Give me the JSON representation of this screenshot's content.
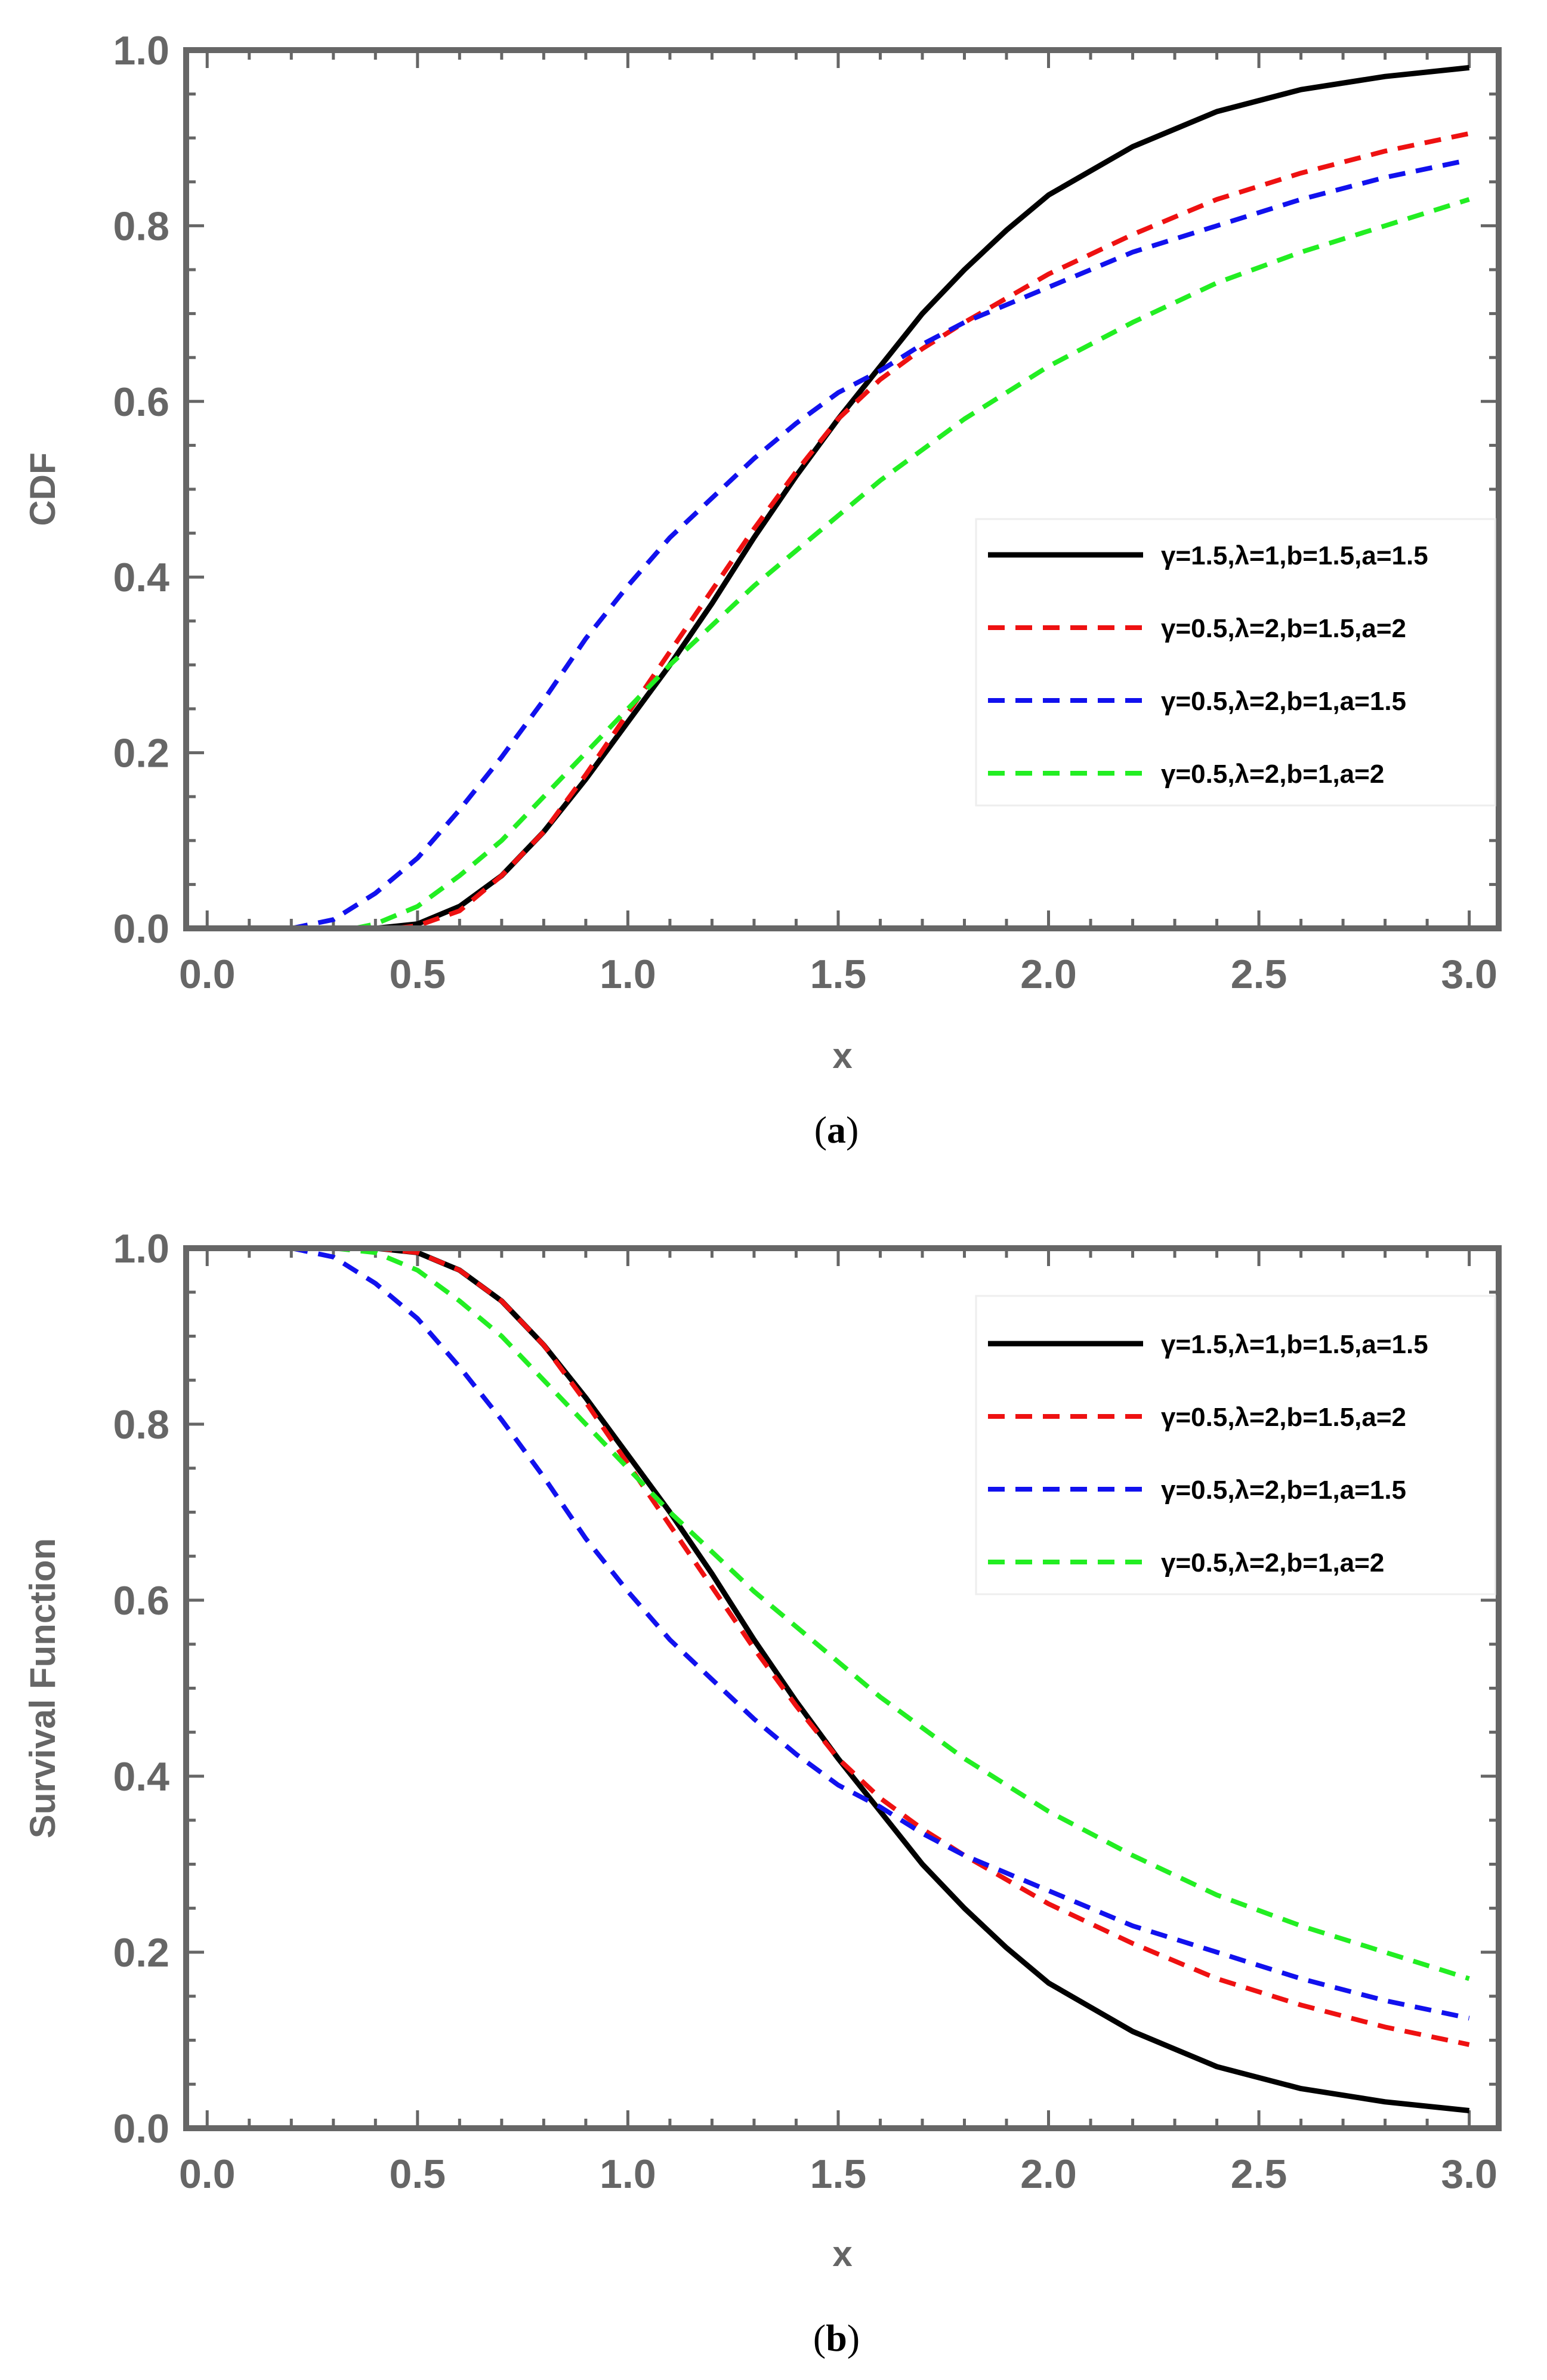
{
  "colors": {
    "frame": "#666666",
    "series": [
      "#000000",
      "#ee1111",
      "#1111ee",
      "#22ee22"
    ]
  },
  "chart_data": [
    {
      "type": "line",
      "panel": "a",
      "caption_open": "(",
      "caption_letter": "a",
      "caption_close": ")",
      "title": "",
      "xlabel": "x",
      "ylabel": "CDF",
      "xlim": [
        -0.05,
        3.07
      ],
      "ylim": [
        0,
        1.0
      ],
      "xticks": [
        "0.0",
        "0.5",
        "1.0",
        "1.5",
        "2.0",
        "2.5",
        "3.0"
      ],
      "yticks": [
        "0.0",
        "0.2",
        "0.4",
        "0.6",
        "0.8",
        "1.0"
      ],
      "legend_position": "right",
      "series": [
        {
          "name": "γ=1.5,λ=1,b=1.5,a=1.5",
          "style": "solid",
          "x": [
            0.4,
            0.5,
            0.6,
            0.7,
            0.8,
            0.9,
            1.0,
            1.1,
            1.2,
            1.3,
            1.4,
            1.5,
            1.6,
            1.7,
            1.8,
            1.9,
            2.0,
            2.2,
            2.4,
            2.6,
            2.8,
            3.0
          ],
          "y": [
            0.0,
            0.005,
            0.025,
            0.06,
            0.11,
            0.17,
            0.235,
            0.3,
            0.37,
            0.445,
            0.515,
            0.58,
            0.64,
            0.7,
            0.75,
            0.795,
            0.835,
            0.89,
            0.93,
            0.955,
            0.97,
            0.98
          ]
        },
        {
          "name": "γ=0.5,λ=2,b=1.5,a=2",
          "style": "dashed",
          "x": [
            0.45,
            0.5,
            0.6,
            0.7,
            0.8,
            0.9,
            1.0,
            1.1,
            1.2,
            1.3,
            1.4,
            1.5,
            1.6,
            1.7,
            1.8,
            2.0,
            2.2,
            2.4,
            2.6,
            2.8,
            3.0
          ],
          "y": [
            0.0,
            0.003,
            0.02,
            0.06,
            0.11,
            0.175,
            0.245,
            0.315,
            0.385,
            0.455,
            0.52,
            0.58,
            0.625,
            0.66,
            0.69,
            0.745,
            0.79,
            0.83,
            0.86,
            0.885,
            0.905
          ]
        },
        {
          "name": "γ=0.5,λ=2,b=1,a=1.5",
          "style": "dashed",
          "x": [
            0.2,
            0.3,
            0.4,
            0.5,
            0.6,
            0.7,
            0.8,
            0.9,
            1.0,
            1.1,
            1.2,
            1.3,
            1.4,
            1.5,
            1.6,
            1.7,
            1.8,
            2.0,
            2.2,
            2.4,
            2.6,
            2.8,
            3.0
          ],
          "y": [
            0.0,
            0.01,
            0.04,
            0.08,
            0.135,
            0.195,
            0.26,
            0.33,
            0.39,
            0.445,
            0.49,
            0.535,
            0.575,
            0.61,
            0.635,
            0.665,
            0.69,
            0.73,
            0.77,
            0.8,
            0.83,
            0.855,
            0.875
          ]
        },
        {
          "name": "γ=0.5,λ=2,b=1,a=2",
          "style": "dashed",
          "x": [
            0.35,
            0.4,
            0.5,
            0.6,
            0.7,
            0.8,
            0.9,
            1.0,
            1.1,
            1.2,
            1.3,
            1.4,
            1.5,
            1.6,
            1.7,
            1.8,
            2.0,
            2.2,
            2.4,
            2.6,
            2.8,
            3.0
          ],
          "y": [
            0.0,
            0.005,
            0.025,
            0.06,
            0.1,
            0.15,
            0.2,
            0.25,
            0.3,
            0.345,
            0.39,
            0.43,
            0.47,
            0.51,
            0.545,
            0.58,
            0.64,
            0.69,
            0.735,
            0.77,
            0.8,
            0.83
          ]
        }
      ]
    },
    {
      "type": "line",
      "panel": "b",
      "caption_open": "(",
      "caption_letter": "b",
      "caption_close": ")",
      "title": "",
      "xlabel": "x",
      "ylabel": "Survival Function",
      "xlim": [
        -0.05,
        3.07
      ],
      "ylim": [
        0,
        1.0
      ],
      "xticks": [
        "0.0",
        "0.5",
        "1.0",
        "1.5",
        "2.0",
        "2.5",
        "3.0"
      ],
      "yticks": [
        "0.0",
        "0.2",
        "0.4",
        "0.6",
        "0.8",
        "1.0"
      ],
      "legend_position": "top-right",
      "series": [
        {
          "name": "γ=1.5,λ=1,b=1.5,a=1.5",
          "style": "solid",
          "x": [
            0.4,
            0.5,
            0.6,
            0.7,
            0.8,
            0.9,
            1.0,
            1.1,
            1.2,
            1.3,
            1.4,
            1.5,
            1.6,
            1.7,
            1.8,
            1.9,
            2.0,
            2.2,
            2.4,
            2.6,
            2.8,
            3.0
          ],
          "y": [
            1.0,
            0.995,
            0.975,
            0.94,
            0.89,
            0.83,
            0.765,
            0.7,
            0.63,
            0.555,
            0.485,
            0.42,
            0.36,
            0.3,
            0.25,
            0.205,
            0.165,
            0.11,
            0.07,
            0.045,
            0.03,
            0.02
          ]
        },
        {
          "name": "γ=0.5,λ=2,b=1.5,a=2",
          "style": "dashed",
          "x": [
            0.4,
            0.5,
            0.6,
            0.7,
            0.8,
            0.9,
            1.0,
            1.1,
            1.2,
            1.3,
            1.4,
            1.5,
            1.6,
            1.7,
            1.8,
            2.0,
            2.2,
            2.4,
            2.6,
            2.8,
            3.0
          ],
          "y": [
            1.0,
            0.995,
            0.975,
            0.94,
            0.89,
            0.825,
            0.755,
            0.685,
            0.615,
            0.545,
            0.48,
            0.42,
            0.375,
            0.34,
            0.31,
            0.255,
            0.21,
            0.17,
            0.14,
            0.115,
            0.095
          ]
        },
        {
          "name": "γ=0.5,λ=2,b=1,a=1.5",
          "style": "dashed",
          "x": [
            0.2,
            0.3,
            0.4,
            0.5,
            0.6,
            0.7,
            0.8,
            0.9,
            1.0,
            1.1,
            1.2,
            1.3,
            1.4,
            1.5,
            1.6,
            1.7,
            1.8,
            2.0,
            2.2,
            2.4,
            2.6,
            2.8,
            3.0
          ],
          "y": [
            1.0,
            0.99,
            0.96,
            0.92,
            0.865,
            0.805,
            0.74,
            0.67,
            0.61,
            0.555,
            0.51,
            0.465,
            0.425,
            0.39,
            0.365,
            0.335,
            0.31,
            0.27,
            0.23,
            0.2,
            0.17,
            0.145,
            0.125
          ]
        },
        {
          "name": "γ=0.5,λ=2,b=1,a=2",
          "style": "dashed",
          "x": [
            0.3,
            0.4,
            0.5,
            0.6,
            0.7,
            0.8,
            0.9,
            1.0,
            1.1,
            1.2,
            1.3,
            1.4,
            1.5,
            1.6,
            1.7,
            1.8,
            2.0,
            2.2,
            2.4,
            2.6,
            2.8,
            3.0
          ],
          "y": [
            1.0,
            0.995,
            0.975,
            0.94,
            0.9,
            0.85,
            0.8,
            0.75,
            0.7,
            0.655,
            0.61,
            0.57,
            0.53,
            0.49,
            0.455,
            0.42,
            0.36,
            0.31,
            0.265,
            0.23,
            0.2,
            0.17
          ]
        }
      ]
    }
  ]
}
